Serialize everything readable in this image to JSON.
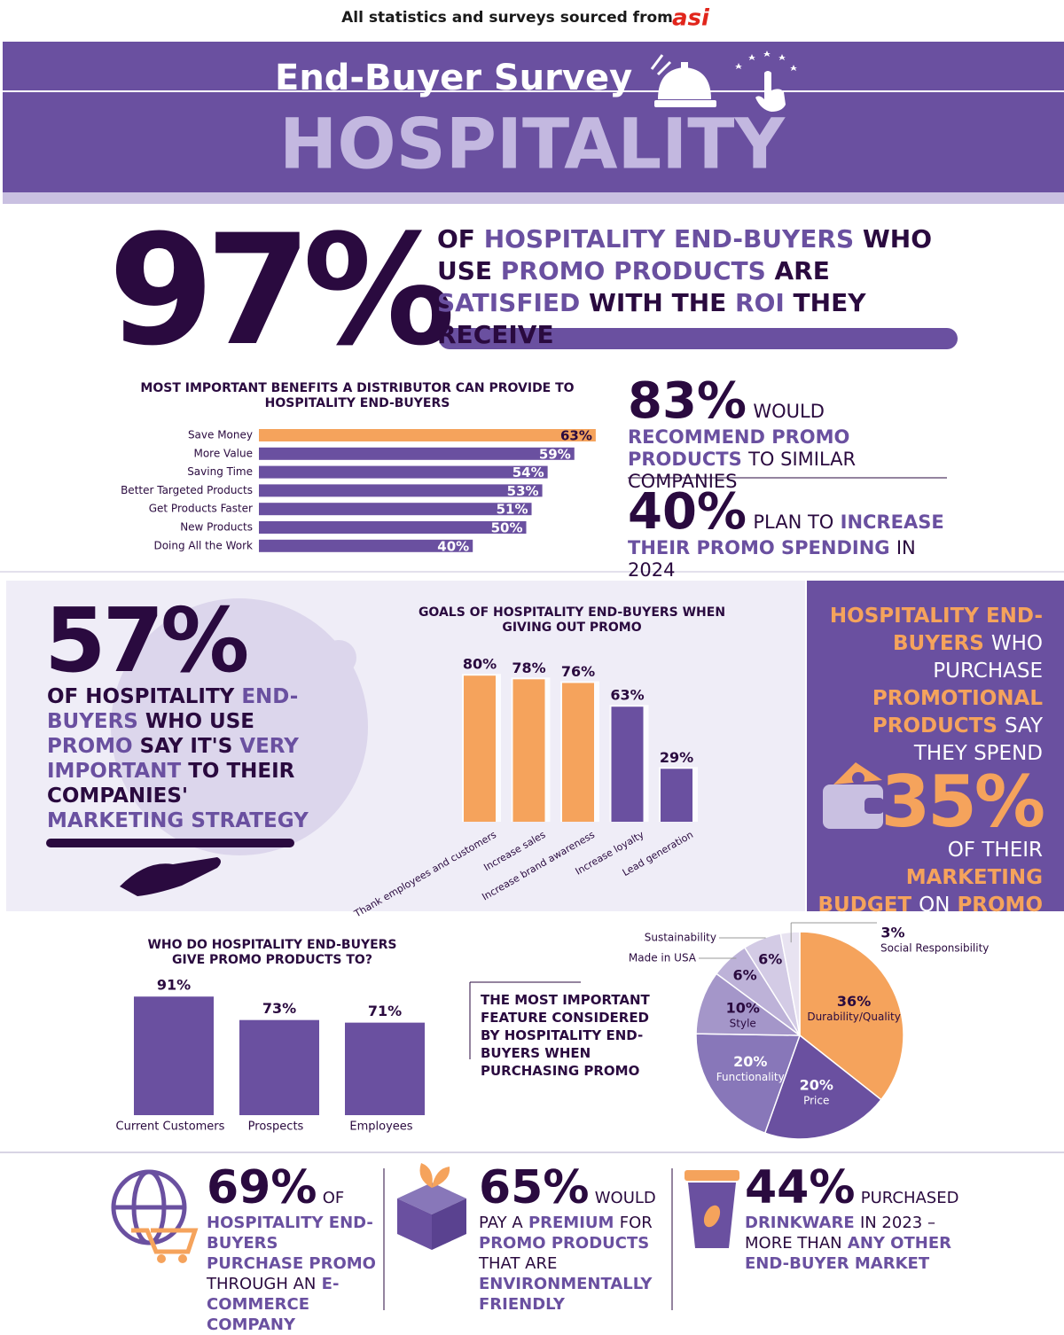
{
  "source": {
    "text": "All statistics and surveys sourced from",
    "logo": "asi"
  },
  "header": {
    "subtitle": "End-Buyer Survey",
    "title": "HOSPITALITY"
  },
  "stats": {
    "roi": {
      "value": "97%",
      "text": [
        "OF",
        "HOSPITALITY END-BUYERS",
        "WHO USE",
        "PROMO PRODUCTS",
        "ARE",
        "SATISFIED",
        "WITH THE",
        "ROI",
        "THEY RECEIVE"
      ]
    },
    "recommend": {
      "value": "83%",
      "text": [
        "WOULD",
        "RECOMMEND",
        "PROMO PRODUCTS",
        "TO SIMILAR COMPANIES"
      ]
    },
    "increase": {
      "value": "40%",
      "text": [
        "PLAN TO",
        "INCREASE",
        "THEIR PROMO SPENDING",
        "IN 2024"
      ]
    },
    "importance": {
      "value": "57%",
      "text": [
        "OF HOSPITALITY",
        "END-BUYERS",
        "WHO USE",
        "PROMO",
        "SAY IT'S",
        "VERY IMPORTANT",
        "TO THEIR COMPANIES'",
        "MARKETING STRATEGY"
      ]
    },
    "budget": {
      "value": "35%",
      "before": [
        "HOSPITALITY END-BUYERS",
        "WHO PURCHASE",
        "PROMOTIONAL PRODUCTS",
        "SAY THEY SPEND"
      ],
      "after": [
        "OF THEIR",
        "MARKETING BUDGET",
        "ON",
        "PROMO"
      ]
    },
    "ecommerce": {
      "value": "69%",
      "text": [
        "OF",
        "HOSPITALITY END-BUYERS PURCHASE PROMO",
        "THROUGH AN",
        "E-COMMERCE COMPANY"
      ]
    },
    "premium": {
      "value": "65%",
      "text": [
        "WOULD PAY A",
        "PREMIUM",
        "FOR",
        "PROMO PRODUCTS",
        "THAT ARE",
        "ENVIRONMENTALLY FRIENDLY"
      ]
    },
    "drinkware": {
      "value": "44%",
      "text": [
        "PURCHASED",
        "DRINKWARE",
        "IN 2023 – MORE THAN",
        "ANY OTHER END-BUYER MARKET"
      ]
    }
  },
  "chart_data": [
    {
      "type": "barh",
      "title": "MOST IMPORTANT BENEFITS A DISTRIBUTOR CAN PROVIDE TO HOSPITALITY END-BUYERS",
      "categories": [
        "Save Money",
        "More Value",
        "Saving Time",
        "Better Targeted Products",
        "Get Products Faster",
        "New Products",
        "Doing All the Work"
      ],
      "values": [
        63,
        59,
        54,
        53,
        51,
        50,
        40
      ],
      "value_labels": [
        "63%",
        "59%",
        "54%",
        "53%",
        "51%",
        "50%",
        "40%"
      ],
      "colors": [
        "#f5a35c",
        "#6a50a0",
        "#6a50a0",
        "#6a50a0",
        "#6a50a0",
        "#6a50a0",
        "#6a50a0"
      ]
    },
    {
      "type": "bar",
      "title": "GOALS OF HOSPITALITY END-BUYERS WHEN GIVING OUT PROMO",
      "categories": [
        "Thank employees and customers",
        "Increase sales",
        "Increase brand awareness",
        "Increase loyalty",
        "Lead generation"
      ],
      "values": [
        80,
        78,
        76,
        63,
        29
      ],
      "value_labels": [
        "80%",
        "78%",
        "76%",
        "63%",
        "29%"
      ],
      "colors": [
        "#f5a35c",
        "#f5a35c",
        "#f5a35c",
        "#6a50a0",
        "#6a50a0"
      ]
    },
    {
      "type": "bar",
      "title": "WHO DO HOSPITALITY END-BUYERS GIVE PROMO PRODUCTS TO?",
      "categories": [
        "Current Customers",
        "Prospects",
        "Employees"
      ],
      "values": [
        91,
        73,
        71
      ],
      "value_labels": [
        "91%",
        "73%",
        "71%"
      ],
      "colors": [
        "#6a50a0",
        "#6a50a0",
        "#6a50a0"
      ]
    },
    {
      "type": "pie",
      "title": "THE MOST IMPORTANT FEATURE CONSIDERED BY HOSPITALITY END-BUYERS WHEN PURCHASING PROMO",
      "categories": [
        "Durability/Quality",
        "Price",
        "Functionality",
        "Style",
        "Made in USA",
        "Sustainability",
        "Social Responsibility"
      ],
      "values": [
        36,
        20,
        20,
        10,
        6,
        6,
        3
      ],
      "value_labels": [
        "36%",
        "20%",
        "20%",
        "10%",
        "6%",
        "6%",
        "3%"
      ],
      "colors": [
        "#f5a35c",
        "#6a50a0",
        "#8877b9",
        "#a496c9",
        "#bdb2d8",
        "#d3cbe5",
        "#e8e3f1"
      ]
    }
  ]
}
